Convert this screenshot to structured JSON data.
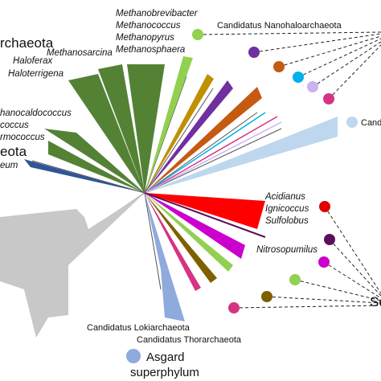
{
  "labels": {
    "archaeota_top": "rchaeota",
    "haloferax": "Haloferax",
    "haloterrigena": "Haloterrigena",
    "methanosarcina": "Methanosarcina",
    "methanobrevibacter": "Methanobrevibacter",
    "methanococcus": "Methanococcus",
    "methanopyrus": "Methanopyrus",
    "methanosphaera": "Methanosphaera",
    "nanohaloarchaeota": "Candidatus Nanohaloarchaeota",
    "methanocaldococcus": "hanocaldococcus",
    "coccus": "coccus",
    "rmococcus": "rmococcus",
    "eota": "eota",
    "eum": "eum",
    "cand_right": "Cand",
    "acidianus": "Acidianus",
    "ignicoccus": "Ignicoccus",
    "sulfolobus": "Sulfolobus",
    "nitrosopumilus": "Nitrosopumilus",
    "lokiarchaeota": "Candidatus Lokiarchaeota",
    "thorarchaeota": "Candidatus Thorarchaeota",
    "asgard": "Asgard",
    "superphylum": "superphylum",
    "se_right": "Se"
  },
  "colors": {
    "euryarchaeota_green": "#548235",
    "dark_blue": "#2f5597",
    "light_green": "#92d050",
    "olive": "#bf9000",
    "purple": "#7030a0",
    "orange": "#c55a11",
    "cyan": "#00b0f0",
    "pink": "#d63384",
    "light_blue": "#bdd7ee",
    "lavender": "#c9b3f0",
    "red": "#ff0000",
    "magenta": "#cc00cc",
    "dark_purple": "#5b0f5b",
    "brown": "#7f6000",
    "asgard_blue": "#8faadc",
    "grey": "#c8c8c8",
    "lines": "#333333"
  }
}
